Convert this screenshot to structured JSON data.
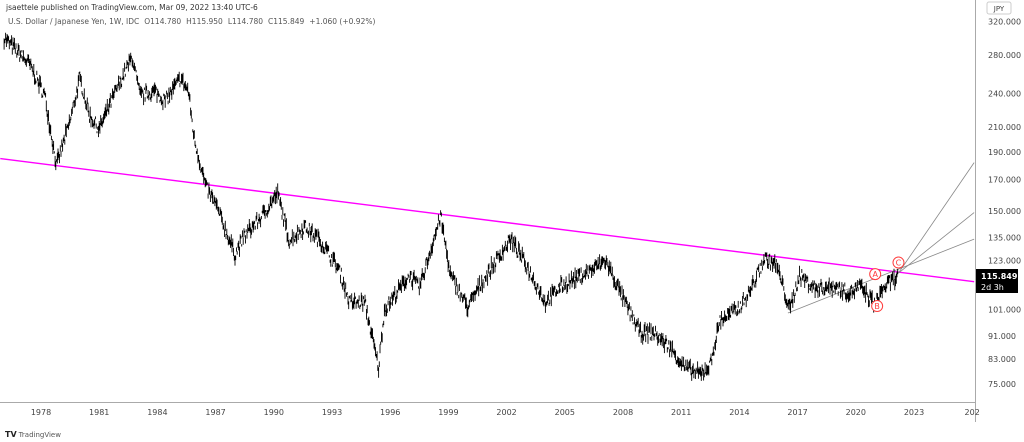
{
  "header": {
    "published": "jsaettele published on TradingView.com, Mar 09, 2022 13:40 UTC-6",
    "symbol": "U.S. Dollar / Japanese Yen, 1W, IDC",
    "open": "O114.780",
    "high": "H115.950",
    "low": "L114.780",
    "close": "C115.849",
    "change": "+1.060 (+0.92%)"
  },
  "footer": {
    "logo": "TradingView"
  },
  "colors": {
    "trendline": "#ff00ff",
    "fan": "#888888",
    "wave_labels": "#ff3b3b",
    "price_box": "#000000",
    "bars": "#000000"
  },
  "chart_data": {
    "type": "line",
    "scale": "log",
    "currency_badge": "JPY",
    "last_price": "115.849",
    "countdown": "2d 3h",
    "x_ticks": [
      "1978",
      "1981",
      "1984",
      "1987",
      "1990",
      "1993",
      "1996",
      "1999",
      "2002",
      "2005",
      "2008",
      "2011",
      "2014",
      "2017",
      "2020",
      "2023",
      "202"
    ],
    "y_ticks": [
      "320.000",
      "280.000",
      "240.000",
      "210.000",
      "190.000",
      "170.000",
      "150.000",
      "135.000",
      "123.000",
      "101.000",
      "91.000",
      "83.000",
      "75.000"
    ],
    "series": [
      {
        "points": [
          [
            1976.1,
            300
          ],
          [
            1977.4,
            270
          ],
          [
            1978.2,
            238
          ],
          [
            1978.8,
            180
          ],
          [
            1979.5,
            215
          ],
          [
            1980.0,
            255
          ],
          [
            1980.5,
            220
          ],
          [
            1981.0,
            208
          ],
          [
            1981.8,
            240
          ],
          [
            1982.7,
            278
          ],
          [
            1983.1,
            238
          ],
          [
            1983.9,
            242
          ],
          [
            1984.4,
            233
          ],
          [
            1985.2,
            255
          ],
          [
            1985.6,
            242
          ],
          [
            1985.9,
            200
          ],
          [
            1986.5,
            165
          ],
          [
            1987.0,
            154
          ],
          [
            1988.0,
            126
          ],
          [
            1988.5,
            136
          ],
          [
            1989.4,
            147
          ],
          [
            1990.2,
            161
          ],
          [
            1990.8,
            133
          ],
          [
            1991.6,
            141
          ],
          [
            1992.4,
            133
          ],
          [
            1993.4,
            118
          ],
          [
            1993.9,
            104
          ],
          [
            1994.7,
            104
          ],
          [
            1995.4,
            80
          ],
          [
            1995.7,
            101
          ],
          [
            1997.0,
            116
          ],
          [
            1997.5,
            110
          ],
          [
            1998.6,
            147
          ],
          [
            1999.1,
            116
          ],
          [
            2000.0,
            102
          ],
          [
            2000.6,
            111
          ],
          [
            2002.2,
            134
          ],
          [
            2003.0,
            121
          ],
          [
            2004.0,
            104
          ],
          [
            2004.8,
            111
          ],
          [
            2006.3,
            118
          ],
          [
            2007.1,
            123
          ],
          [
            2008.1,
            104
          ],
          [
            2008.9,
            92
          ],
          [
            2009.6,
            92
          ],
          [
            2010.4,
            87
          ],
          [
            2011.2,
            80
          ],
          [
            2012.0,
            78
          ],
          [
            2012.5,
            81
          ],
          [
            2013.0,
            97
          ],
          [
            2013.9,
            101
          ],
          [
            2014.5,
            108
          ],
          [
            2015.3,
            124
          ],
          [
            2015.9,
            121
          ],
          [
            2016.6,
            101
          ],
          [
            2017.1,
            116
          ],
          [
            2017.9,
            110
          ],
          [
            2018.9,
            111
          ],
          [
            2019.7,
            108
          ],
          [
            2020.2,
            111
          ],
          [
            2021.0,
            103
          ],
          [
            2021.4,
            110
          ],
          [
            2022.2,
            115.849
          ]
        ]
      }
    ],
    "trendlines": [
      {
        "kind": "trendline",
        "from": [
          1975.9,
          185
        ],
        "to": [
          2026.1,
          113
        ]
      },
      {
        "kind": "fan",
        "from": [
          2016.5,
          99.7
        ],
        "to": [
          2026.1,
          134
        ]
      },
      {
        "kind": "fan",
        "from": [
          2022.2,
          117
        ],
        "to": [
          2026.1,
          182
        ]
      },
      {
        "kind": "fan",
        "from": [
          2022.2,
          117
        ],
        "to": [
          2026.1,
          149
        ]
      }
    ],
    "annotations": [
      {
        "text": "A",
        "at": [
          2021.0,
          116.5
        ]
      },
      {
        "text": "B",
        "at": [
          2021.1,
          102.5
        ]
      },
      {
        "text": "C",
        "at": [
          2022.2,
          122
        ]
      }
    ]
  }
}
